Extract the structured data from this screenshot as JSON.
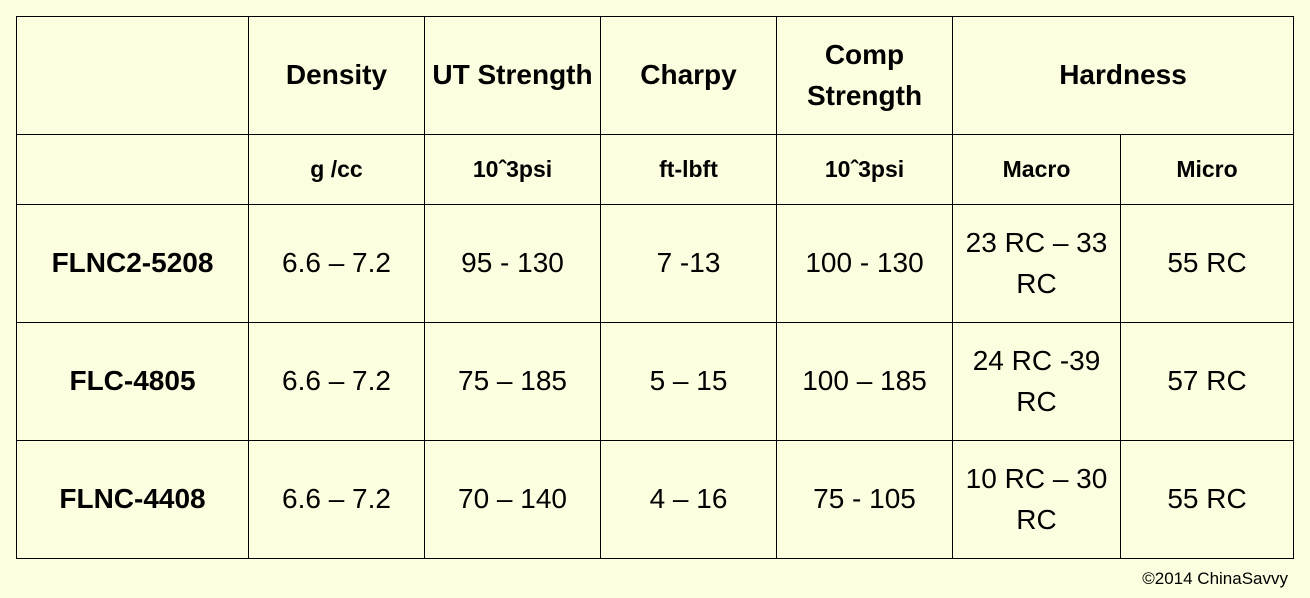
{
  "header": {
    "density": "Density",
    "ut_strength": "UT Strength",
    "charpy": "Charpy",
    "comp_strength": "Comp Strength",
    "hardness": "Hardness"
  },
  "units": {
    "density": "g /cc",
    "ut_strength": "10ˆ3psi",
    "charpy": "ft-lbft",
    "comp_strength": "10ˆ3psi",
    "macro": "Macro",
    "micro": "Micro"
  },
  "rows": [
    {
      "material": "FLNC2-5208",
      "density": "6.6 – 7.2",
      "ut_strength": "95 - 130",
      "charpy": "7 -13",
      "comp_strength": "100 - 130",
      "macro": "23 RC – 33 RC",
      "micro": "55 RC"
    },
    {
      "material": "FLC-4805",
      "density": "6.6 – 7.2",
      "ut_strength": "75 – 185",
      "charpy": "5 – 15",
      "comp_strength": "100 – 185",
      "macro": "24 RC -39 RC",
      "micro": "57 RC"
    },
    {
      "material": "FLNC-4408",
      "density": "6.6 – 7.2",
      "ut_strength": "70 – 140",
      "charpy": "4 – 16",
      "comp_strength": "75 - 105",
      "macro": "10 RC – 30 RC",
      "micro": "55 RC"
    }
  ],
  "copyright": "©2014 ChinaSavvy"
}
